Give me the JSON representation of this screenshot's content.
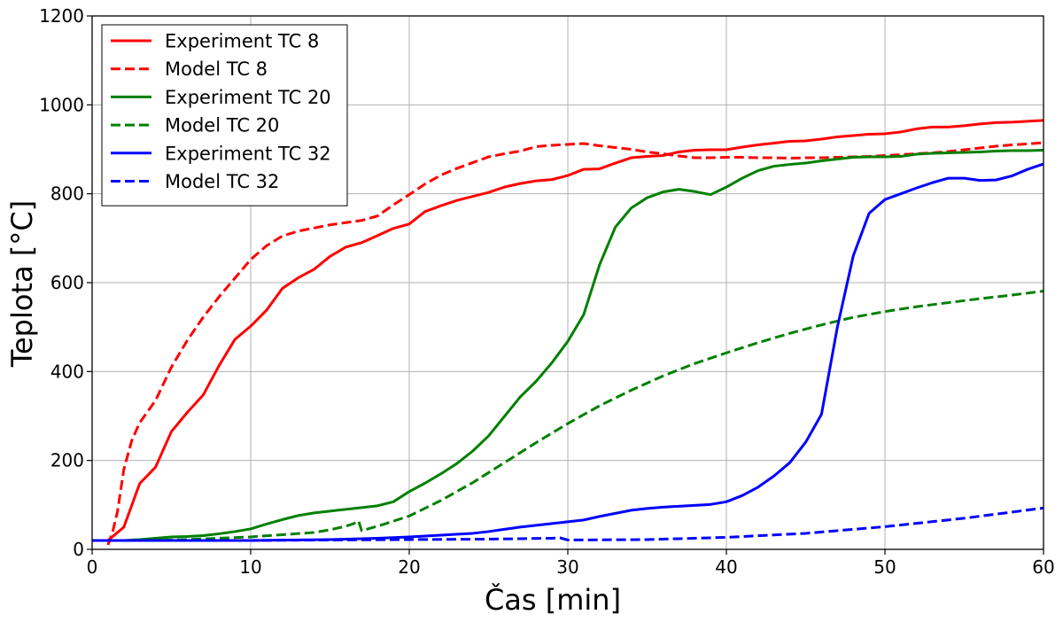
{
  "chart_data": {
    "type": "line",
    "title": "",
    "xlabel": "Čas [min]",
    "ylabel": "Teplota [°C]",
    "xlim": [
      0,
      60
    ],
    "ylim": [
      0,
      1200
    ],
    "xticks": [
      0,
      10,
      20,
      30,
      40,
      50,
      60
    ],
    "yticks": [
      0,
      200,
      400,
      600,
      800,
      1000,
      1200
    ],
    "grid": true,
    "legend_position": "top-left",
    "series": [
      {
        "name": "Experiment TC 8",
        "color": "#ff0000",
        "style": "solid",
        "x": [
          0,
          1,
          2,
          3,
          4,
          5,
          6,
          7,
          8,
          9,
          10,
          11,
          12,
          13,
          14,
          15,
          16,
          17,
          18,
          19,
          20,
          21,
          22,
          23,
          24,
          25,
          26,
          27,
          28,
          29,
          30,
          31,
          32,
          33,
          34,
          35,
          36,
          37,
          38,
          39,
          40,
          41,
          42,
          43,
          44,
          45,
          46,
          47,
          48,
          49,
          50,
          51,
          52,
          53,
          54,
          55,
          56,
          57,
          58,
          59,
          60
        ],
        "y": [
          20,
          20,
          50,
          148,
          185,
          265,
          308,
          347,
          413,
          472,
          502,
          538,
          587,
          611,
          630,
          659,
          680,
          690,
          706,
          722,
          732,
          760,
          773,
          785,
          794,
          803,
          815,
          823,
          829,
          832,
          841,
          855,
          856,
          869,
          881,
          884,
          886,
          894,
          898,
          899,
          899,
          905,
          910,
          914,
          918,
          919,
          923,
          928,
          931,
          934,
          935,
          939,
          946,
          950,
          950,
          953,
          957,
          960,
          961,
          963,
          965
        ]
      },
      {
        "name": "Model TC 8",
        "color": "#ff0000",
        "style": "dashed",
        "x": [
          1,
          1.3,
          1.6,
          2,
          2.5,
          3,
          4,
          5,
          6,
          7,
          8,
          9,
          10,
          11,
          12,
          13,
          14,
          15,
          16,
          17,
          18,
          19,
          20,
          21,
          22,
          23,
          24,
          25,
          26,
          27,
          28,
          29,
          30,
          31,
          32,
          33,
          34,
          35,
          36,
          37,
          38,
          39,
          40,
          41,
          42,
          43,
          44,
          45,
          46,
          47,
          48,
          49,
          50,
          51,
          52,
          53,
          54,
          55,
          56,
          57,
          58,
          59,
          60
        ],
        "y": [
          10,
          40,
          85,
          180,
          245,
          285,
          335,
          410,
          470,
          522,
          568,
          610,
          652,
          683,
          705,
          716,
          723,
          730,
          735,
          740,
          750,
          775,
          798,
          822,
          842,
          857,
          870,
          883,
          890,
          896,
          906,
          909,
          911,
          913,
          908,
          904,
          900,
          894,
          890,
          885,
          881,
          881,
          882,
          882,
          881,
          881,
          880,
          881,
          881,
          882,
          883,
          884,
          886,
          888,
          890,
          892,
          895,
          899,
          903,
          907,
          910,
          912,
          915
        ]
      },
      {
        "name": "Experiment TC 20",
        "color": "#008000",
        "style": "solid",
        "x": [
          0,
          1,
          2,
          3,
          4,
          5,
          6,
          7,
          8,
          9,
          10,
          11,
          12,
          13,
          14,
          15,
          16,
          17,
          18,
          19,
          20,
          21,
          22,
          23,
          24,
          25,
          26,
          27,
          28,
          29,
          30,
          31,
          32,
          33,
          34,
          35,
          36,
          37,
          38,
          39,
          40,
          41,
          42,
          43,
          44,
          45,
          46,
          47,
          48,
          49,
          50,
          51,
          52,
          53,
          54,
          55,
          56,
          57,
          58,
          59,
          60
        ],
        "y": [
          20,
          20,
          20,
          22,
          25,
          28,
          29,
          31,
          35,
          40,
          46,
          57,
          67,
          76,
          82,
          86,
          90,
          94,
          98,
          107,
          130,
          149,
          170,
          193,
          221,
          255,
          299,
          343,
          378,
          420,
          468,
          528,
          640,
          725,
          768,
          791,
          804,
          810,
          805,
          798,
          815,
          835,
          852,
          862,
          866,
          869,
          874,
          878,
          882,
          883,
          883,
          884,
          889,
          891,
          892,
          893,
          894,
          896,
          897,
          897,
          898
        ]
      },
      {
        "name": "Model TC 20",
        "color": "#008000",
        "style": "dashed",
        "x": [
          0,
          2,
          4,
          6,
          8,
          10,
          12,
          14,
          15,
          16,
          16.5,
          16.8,
          17,
          18,
          20,
          22,
          24,
          26,
          28,
          30,
          32,
          34,
          36,
          38,
          40,
          42,
          44,
          46,
          48,
          50,
          52,
          54,
          56,
          58,
          60
        ],
        "y": [
          20,
          20,
          20,
          22,
          25,
          28,
          33,
          38,
          44,
          52,
          58,
          64,
          42,
          52,
          75,
          110,
          150,
          195,
          240,
          283,
          323,
          358,
          390,
          418,
          442,
          465,
          486,
          505,
          522,
          535,
          546,
          555,
          564,
          572,
          581
        ]
      },
      {
        "name": "Experiment TC 32",
        "color": "#0000ff",
        "style": "solid",
        "x": [
          0,
          5,
          10,
          15,
          18,
          20,
          22,
          24,
          25,
          26,
          27,
          28,
          29,
          30,
          31,
          32,
          33,
          34,
          35,
          36,
          37,
          38,
          39,
          40,
          41,
          42,
          43,
          44,
          45,
          46,
          47,
          48,
          49,
          50,
          51,
          52,
          53,
          54,
          55,
          56,
          57,
          58,
          59,
          60
        ],
        "y": [
          20,
          20,
          20,
          22,
          25,
          28,
          32,
          36,
          40,
          45,
          50,
          54,
          58,
          62,
          66,
          74,
          81,
          88,
          92,
          95,
          97,
          99,
          101,
          107,
          121,
          140,
          165,
          195,
          241,
          304,
          500,
          660,
          756,
          787,
          800,
          813,
          825,
          835,
          835,
          830,
          831,
          840,
          855,
          867
        ]
      },
      {
        "name": "Model TC 32",
        "color": "#0000ff",
        "style": "dashed",
        "x": [
          0,
          5,
          10,
          15,
          20,
          25,
          29,
          29.5,
          30,
          35,
          40,
          45,
          50,
          55,
          60
        ],
        "y": [
          20,
          20,
          20,
          21,
          22,
          23,
          25,
          26,
          21,
          22,
          27,
          36,
          51,
          70,
          93
        ]
      }
    ]
  }
}
